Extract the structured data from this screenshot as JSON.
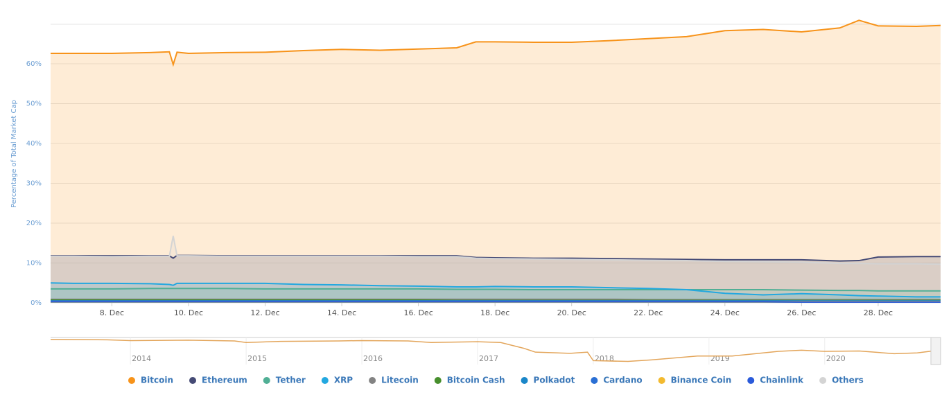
{
  "chart_data": [
    {
      "type": "line",
      "y_label": "Percentage of Total Market Cap",
      "x": [
        6.4,
        7,
        8,
        9,
        9.5,
        9.6,
        9.7,
        10,
        11,
        12,
        13,
        14,
        15,
        16,
        17,
        17.5,
        18,
        19,
        20,
        21,
        22,
        23,
        24,
        25,
        26,
        27,
        27.5,
        28,
        29,
        29.63
      ],
      "xlim": [
        6.4,
        29.63
      ],
      "xticks": [
        {
          "value": 8,
          "label": "8. Dec"
        },
        {
          "value": 10,
          "label": "10. Dec"
        },
        {
          "value": 12,
          "label": "12. Dec"
        },
        {
          "value": 14,
          "label": "14. Dec"
        },
        {
          "value": 16,
          "label": "16. Dec"
        },
        {
          "value": 18,
          "label": "18. Dec"
        },
        {
          "value": 20,
          "label": "20. Dec"
        },
        {
          "value": 22,
          "label": "22. Dec"
        },
        {
          "value": 24,
          "label": "24. Dec"
        },
        {
          "value": 26,
          "label": "26. Dec"
        },
        {
          "value": 28,
          "label": "28. Dec"
        }
      ],
      "ylim": [
        0,
        72
      ],
      "yticks": [
        {
          "value": 0,
          "label": "0%"
        },
        {
          "value": 10,
          "label": "10%"
        },
        {
          "value": 20,
          "label": "20%"
        },
        {
          "value": 30,
          "label": "30%"
        },
        {
          "value": 40,
          "label": "40%"
        },
        {
          "value": 50,
          "label": "50%"
        },
        {
          "value": 60,
          "label": "60%"
        }
      ],
      "grid": true,
      "series": [
        {
          "name": "Bitcoin",
          "color": "#f7931a",
          "values": [
            62.6,
            62.6,
            62.6,
            62.8,
            63.0,
            59.8,
            62.9,
            62.6,
            62.8,
            62.9,
            63.3,
            63.6,
            63.4,
            63.7,
            64.0,
            65.5,
            65.5,
            65.4,
            65.4,
            65.8,
            66.3,
            66.8,
            68.3,
            68.6,
            68.0,
            69.0,
            70.9,
            69.5,
            69.4,
            69.6
          ]
        },
        {
          "name": "Ethereum",
          "color": "#454a75",
          "values": [
            11.8,
            11.8,
            11.8,
            11.8,
            11.8,
            11.2,
            11.9,
            11.9,
            11.8,
            11.8,
            11.8,
            11.8,
            11.8,
            11.8,
            11.8,
            11.4,
            11.3,
            11.2,
            11.2,
            11.1,
            11.0,
            10.9,
            10.8,
            10.8,
            10.8,
            10.5,
            10.6,
            11.5,
            11.6,
            11.6
          ]
        },
        {
          "name": "Tether",
          "color": "#50af95",
          "values": [
            3.5,
            3.5,
            3.5,
            3.6,
            3.6,
            3.6,
            3.6,
            3.6,
            3.6,
            3.5,
            3.5,
            3.5,
            3.5,
            3.5,
            3.4,
            3.4,
            3.4,
            3.3,
            3.3,
            3.3,
            3.3,
            3.3,
            3.3,
            3.3,
            3.2,
            3.1,
            3.1,
            3.0,
            3.0,
            3.0
          ]
        },
        {
          "name": "XRP",
          "color": "#23a8e0",
          "values": [
            5.0,
            4.9,
            4.9,
            4.8,
            4.6,
            4.4,
            4.9,
            4.9,
            4.9,
            4.9,
            4.6,
            4.5,
            4.3,
            4.2,
            4.0,
            4.0,
            4.1,
            4.0,
            4.0,
            3.8,
            3.6,
            3.3,
            2.4,
            2.0,
            2.3,
            2.0,
            1.8,
            1.7,
            1.5,
            1.5
          ]
        },
        {
          "name": "Litecoin",
          "color": "#838383",
          "values": [
            0.9,
            0.9,
            0.9,
            0.9,
            0.9,
            0.9,
            0.9,
            0.9,
            0.9,
            0.9,
            0.9,
            0.9,
            0.9,
            0.9,
            0.9,
            0.9,
            0.9,
            0.9,
            0.9,
            0.9,
            0.8,
            0.8,
            0.8,
            0.8,
            0.8,
            0.8,
            0.8,
            0.8,
            0.8,
            0.8
          ]
        },
        {
          "name": "Bitcoin Cash",
          "color": "#478f2d",
          "values": [
            0.7,
            0.7,
            0.7,
            0.7,
            0.7,
            0.7,
            0.7,
            0.7,
            0.7,
            0.7,
            0.7,
            0.7,
            0.7,
            0.7,
            0.6,
            0.6,
            0.6,
            0.6,
            0.6,
            0.6,
            0.6,
            0.6,
            0.6,
            0.6,
            0.6,
            0.6,
            0.6,
            0.6,
            0.6,
            0.6
          ]
        },
        {
          "name": "Polkadot",
          "color": "#1a86c8",
          "values": [
            0.5,
            0.5,
            0.5,
            0.5,
            0.5,
            0.5,
            0.5,
            0.5,
            0.5,
            0.5,
            0.5,
            0.5,
            0.5,
            0.5,
            0.5,
            0.5,
            0.5,
            0.5,
            0.5,
            0.5,
            0.5,
            0.5,
            0.5,
            0.5,
            0.5,
            0.5,
            0.5,
            0.5,
            0.5,
            0.5
          ]
        },
        {
          "name": "Cardano",
          "color": "#2a6fd4",
          "values": [
            0.4,
            0.4,
            0.4,
            0.4,
            0.4,
            0.4,
            0.4,
            0.4,
            0.4,
            0.4,
            0.4,
            0.4,
            0.4,
            0.4,
            0.4,
            0.4,
            0.4,
            0.4,
            0.4,
            0.4,
            0.4,
            0.4,
            0.3,
            0.3,
            0.3,
            0.3,
            0.3,
            0.3,
            0.3,
            0.3
          ]
        },
        {
          "name": "Binance Coin",
          "color": "#f3ba2f",
          "values": [
            0.3,
            0.3,
            0.3,
            0.3,
            0.3,
            0.3,
            0.3,
            0.3,
            0.3,
            0.3,
            0.3,
            0.3,
            0.3,
            0.3,
            0.3,
            0.3,
            0.3,
            0.3,
            0.3,
            0.3,
            0.3,
            0.3,
            0.3,
            0.3,
            0.3,
            0.3,
            0.3,
            0.3,
            0.3,
            0.3
          ]
        },
        {
          "name": "Chainlink",
          "color": "#2a5ada",
          "values": [
            0.3,
            0.3,
            0.3,
            0.3,
            0.3,
            0.3,
            0.3,
            0.3,
            0.3,
            0.3,
            0.3,
            0.3,
            0.3,
            0.3,
            0.3,
            0.3,
            0.3,
            0.3,
            0.3,
            0.3,
            0.3,
            0.3,
            0.3,
            0.3,
            0.2,
            0.2,
            0.2,
            0.2,
            0.2,
            0.2
          ]
        },
        {
          "name": "Others",
          "color": "#d4d4d4",
          "values": [
            11.7,
            11.7,
            11.6,
            11.7,
            11.7,
            16.8,
            11.8,
            11.8,
            11.7,
            11.7,
            11.7,
            11.7,
            11.7,
            11.6,
            11.6,
            11.2,
            11.1,
            11.0,
            10.9,
            10.8,
            10.7,
            10.6,
            10.4,
            10.3,
            10.2,
            9.9,
            9.9,
            9.8,
            9.8,
            9.7
          ]
        }
      ]
    },
    {
      "type": "navigator",
      "x": [
        2013.31,
        2013.8,
        2014,
        2014.5,
        2014.9,
        2015.0,
        2015.3,
        2015.8,
        2016,
        2016.4,
        2016.6,
        2017,
        2017.2,
        2017.4,
        2017.5,
        2017.8,
        2017.95,
        2018.0,
        2018.3,
        2018.5,
        2018.9,
        2019.2,
        2019.6,
        2019.8,
        2020.0,
        2020.3,
        2020.6,
        2020.8,
        2020.93
      ],
      "values": [
        95,
        94,
        92,
        93,
        91,
        87,
        90,
        91,
        92,
        91,
        87,
        89,
        87,
        72,
        62,
        59,
        62,
        40,
        38,
        42,
        52,
        52,
        64,
        67,
        64,
        65,
        58,
        60,
        65
      ],
      "color": "#e3a55a",
      "xlim": [
        2013.31,
        2020.93
      ],
      "ylim": [
        30,
        100
      ],
      "xticks": [
        2014,
        2015,
        2016,
        2017,
        2018,
        2019,
        2020
      ]
    }
  ]
}
